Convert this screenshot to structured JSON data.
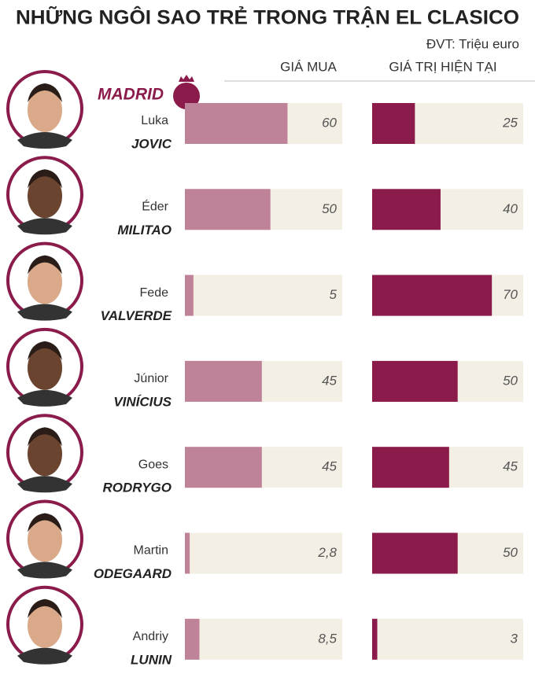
{
  "chart_data": {
    "type": "paired-bar",
    "title": "NHỮNG NGÔI SAO TRẺ TRONG TRẬN EL CLASICO",
    "unit_note": "ĐVT: Triệu euro",
    "team": "MADRID",
    "first_names": [
      "Luka",
      "Éder",
      "Fede",
      "Júnior",
      "Goes",
      "Martin",
      "Andriy"
    ],
    "last_names": [
      "JOVIC",
      "MILITAO",
      "VALVERDE",
      "VINÍCIUS",
      "RODRYGO",
      "ODEGAARD",
      "LUNIN"
    ],
    "xlim": [
      0,
      92
    ],
    "series": [
      {
        "name": "GIÁ MUA",
        "color": "#bf8399",
        "values": [
          60,
          50,
          5,
          45,
          45,
          2.8,
          8.5
        ],
        "value_labels": [
          "60",
          "50",
          "5",
          "45",
          "45",
          "2,8",
          "8,5"
        ]
      },
      {
        "name": "GIÁ TRỊ HIỆN TẠI",
        "color": "#8a1b4a",
        "values": [
          25,
          40,
          70,
          50,
          45,
          50,
          3
        ]
      }
    ]
  }
}
